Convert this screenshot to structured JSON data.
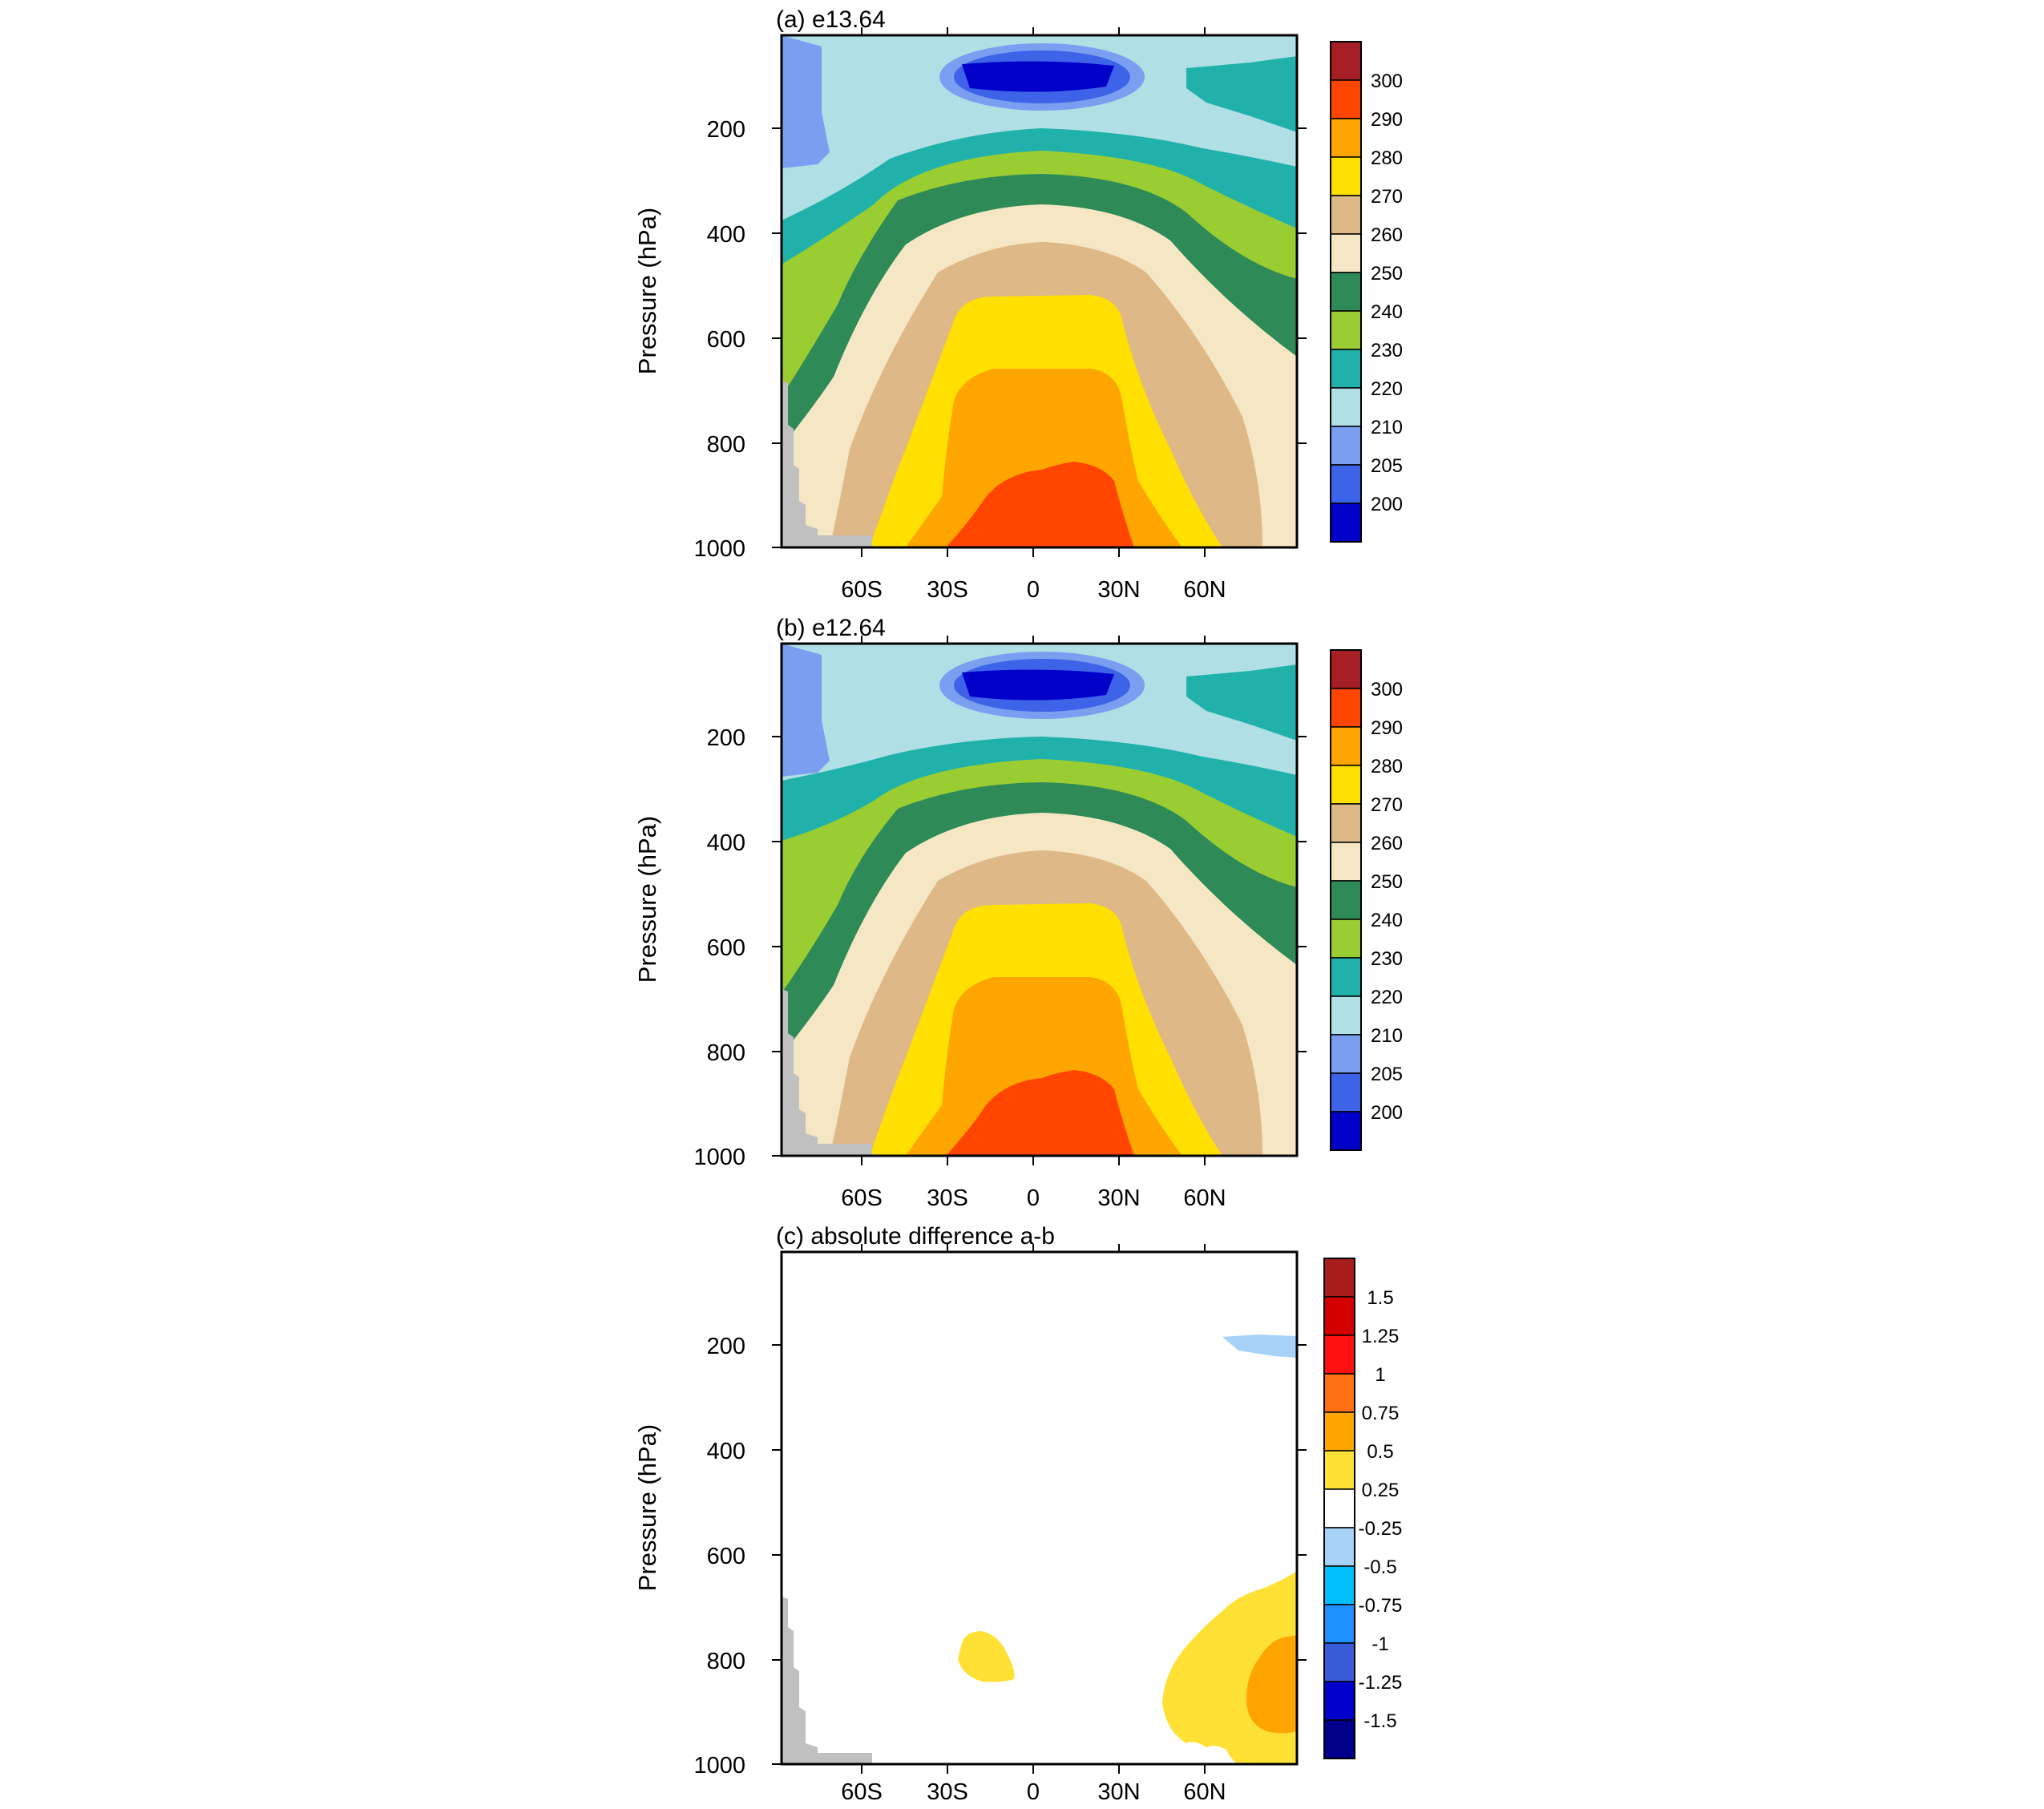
{
  "chart_data": [
    {
      "type": "contour",
      "title": "(a) e13.64",
      "xlabel": "",
      "ylabel": "Pressure (hPa)",
      "x_ticks": [
        "60S",
        "30S",
        "0",
        "30N",
        "60N"
      ],
      "y_ticks": [
        "200",
        "400",
        "600",
        "800",
        "1000"
      ],
      "ylim": [
        1000,
        25
      ],
      "colorbar": {
        "levels": [
          "300",
          "290",
          "280",
          "270",
          "260",
          "250",
          "240",
          "230",
          "220",
          "210",
          "205",
          "200"
        ],
        "colors": [
          "#a51f25",
          "#ff4500",
          "#ffa500",
          "#ffe000",
          "#deb887",
          "#f5e6c4",
          "#2e8b57",
          "#9acd32",
          "#20b2aa",
          "#b0e0e6",
          "#7b9ff0",
          "#3d63e8",
          "#0000c8"
        ]
      }
    },
    {
      "type": "contour",
      "title": "(b) e12.64",
      "xlabel": "",
      "ylabel": "Pressure (hPa)",
      "x_ticks": [
        "60S",
        "30S",
        "0",
        "30N",
        "60N"
      ],
      "y_ticks": [
        "200",
        "400",
        "600",
        "800",
        "1000"
      ],
      "ylim": [
        1000,
        25
      ],
      "colorbar": {
        "levels": [
          "300",
          "290",
          "280",
          "270",
          "260",
          "250",
          "240",
          "230",
          "220",
          "210",
          "205",
          "200"
        ],
        "colors": [
          "#a51f25",
          "#ff4500",
          "#ffa500",
          "#ffe000",
          "#deb887",
          "#f5e6c4",
          "#2e8b57",
          "#9acd32",
          "#20b2aa",
          "#b0e0e6",
          "#7b9ff0",
          "#3d63e8",
          "#0000c8"
        ]
      }
    },
    {
      "type": "contour",
      "title": "(c) absolute difference a-b",
      "xlabel": "",
      "ylabel": "Pressure (hPa)",
      "x_ticks": [
        "60S",
        "30S",
        "0",
        "30N",
        "60N"
      ],
      "y_ticks": [
        "200",
        "400",
        "600",
        "800",
        "1000"
      ],
      "ylim": [
        1000,
        25
      ],
      "colorbar": {
        "levels": [
          "1.5",
          "1.25",
          "1",
          "0.75",
          "0.5",
          "0.25",
          "-0.25",
          "-0.5",
          "-0.75",
          "-1",
          "-1.25",
          "-1.5"
        ],
        "colors": [
          "#a81c1c",
          "#d40000",
          "#ff1010",
          "#ff7010",
          "#ffa500",
          "#ffe135",
          "#ffffff",
          "#a6d2f7",
          "#00bfff",
          "#1e90ff",
          "#3a5bd9",
          "#0000cd",
          "#00008b"
        ]
      }
    }
  ]
}
